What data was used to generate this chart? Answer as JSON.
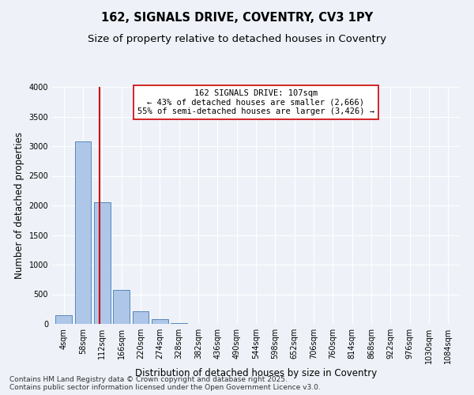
{
  "title1": "162, SIGNALS DRIVE, COVENTRY, CV3 1PY",
  "title2": "Size of property relative to detached houses in Coventry",
  "xlabel": "Distribution of detached houses by size in Coventry",
  "ylabel": "Number of detached properties",
  "bar_labels": [
    "4sqm",
    "58sqm",
    "112sqm",
    "166sqm",
    "220sqm",
    "274sqm",
    "328sqm",
    "382sqm",
    "436sqm",
    "490sqm",
    "544sqm",
    "598sqm",
    "652sqm",
    "706sqm",
    "760sqm",
    "814sqm",
    "868sqm",
    "922sqm",
    "976sqm",
    "1030sqm",
    "1084sqm"
  ],
  "bar_values": [
    150,
    3080,
    2060,
    570,
    220,
    80,
    20,
    5,
    2,
    1,
    0,
    0,
    0,
    0,
    0,
    0,
    0,
    0,
    0,
    0,
    0
  ],
  "bar_color": "#aec6e8",
  "bar_edge_color": "#5588bb",
  "ylim": [
    0,
    4000
  ],
  "yticks": [
    0,
    500,
    1000,
    1500,
    2000,
    2500,
    3000,
    3500,
    4000
  ],
  "vline_x": 1.85,
  "vline_color": "#cc0000",
  "annotation_text": "162 SIGNALS DRIVE: 107sqm\n← 43% of detached houses are smaller (2,666)\n55% of semi-detached houses are larger (3,426) →",
  "annotation_box_color": "#ffffff",
  "annotation_box_edge": "#cc0000",
  "background_color": "#eef2f8",
  "grid_color": "#ffffff",
  "footer_text": "Contains HM Land Registry data © Crown copyright and database right 2025.\nContains public sector information licensed under the Open Government Licence v3.0.",
  "title_fontsize": 10.5,
  "subtitle_fontsize": 9.5,
  "axis_label_fontsize": 8.5,
  "tick_fontsize": 7,
  "footer_fontsize": 6.5,
  "annot_fontsize": 7.5
}
